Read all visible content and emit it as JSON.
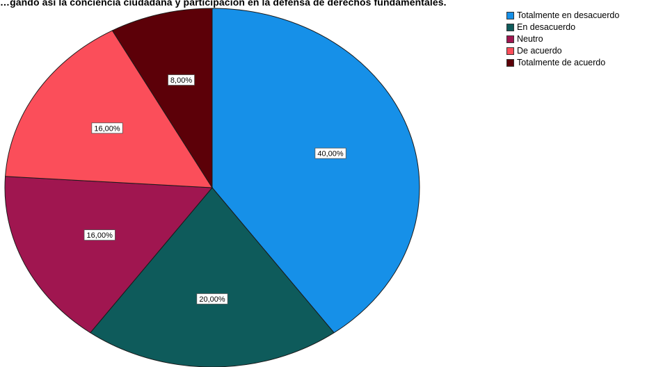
{
  "chart_data": {
    "type": "pie",
    "title": "…gando así la conciencia ciudadana y participación en la defensa de derechos fundamentales.",
    "categories": [
      "Totalmente en desacuerdo",
      "En desacuerdo",
      "Neutro",
      "De acuerdo",
      "Totalmente de acuerdo"
    ],
    "values": [
      40,
      20,
      16,
      16,
      8
    ],
    "labels": [
      "40,00%",
      "20,00%",
      "16,00%",
      "16,00%",
      "8,00%"
    ],
    "colors": [
      "#1690e8",
      "#0e5b5b",
      "#a01650",
      "#fb4e5a",
      "#5c0008"
    ],
    "legend_position": "top-right"
  }
}
